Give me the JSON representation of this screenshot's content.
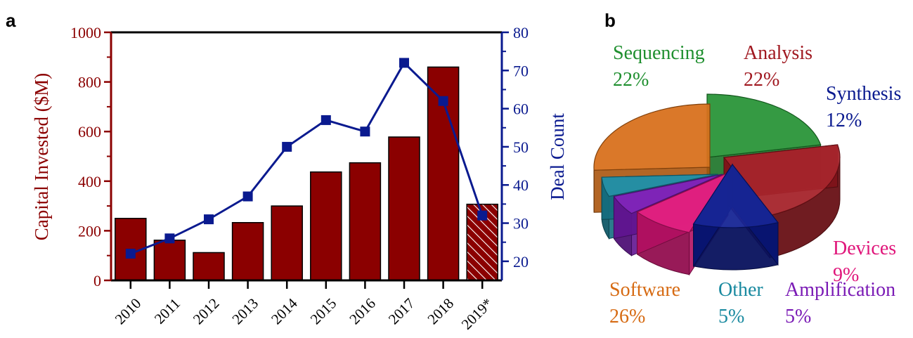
{
  "figure": {
    "panel_a": "a",
    "panel_b": "b"
  },
  "chart_data": [
    {
      "type": "bar",
      "categories": [
        "2010",
        "2011",
        "2012",
        "2013",
        "2014",
        "2015",
        "2016",
        "2017",
        "2018",
        "2019*"
      ],
      "series": [
        {
          "values": [
            250,
            162,
            112,
            233,
            300,
            437,
            474,
            578,
            860,
            307
          ],
          "axis": "left",
          "color": "#8b0000",
          "hatched_last": true
        },
        {
          "type": "line",
          "values": [
            22,
            26,
            31,
            37,
            50,
            57,
            54,
            72,
            62,
            32
          ],
          "axis": "right",
          "color": "#0a1a8f",
          "marker": "square"
        }
      ],
      "ylabel": "Capital Invested ($M)",
      "y2label": "Deal Count",
      "ylim": [
        0,
        1000
      ],
      "y2lim": [
        15,
        80
      ],
      "yticks": [
        0,
        200,
        400,
        600,
        800,
        1000
      ],
      "y2ticks": [
        20,
        30,
        40,
        50,
        60,
        70,
        80
      ],
      "grid": false,
      "left_axis_color": "#8b0000",
      "right_axis_color": "#0a1a8f"
    },
    {
      "type": "pie",
      "style": "3d-exploded",
      "slices": [
        {
          "name": "Sequencing",
          "value": 22,
          "label": "22%",
          "color": "#1f8f2f"
        },
        {
          "name": "Analysis",
          "value": 22,
          "label": "22%",
          "color": "#a01820"
        },
        {
          "name": "Synthesis",
          "value": 12,
          "label": "12%",
          "color": "#0a1a8f"
        },
        {
          "name": "Devices",
          "value": 9,
          "label": "9%",
          "color": "#e0157a"
        },
        {
          "name": "Amplification",
          "value": 5,
          "label": "5%",
          "color": "#7a1ab5"
        },
        {
          "name": "Other",
          "value": 5,
          "label": "5%",
          "color": "#1a8aa0"
        },
        {
          "name": "Software",
          "value": 26,
          "label": "26%",
          "color": "#d66a12"
        }
      ]
    }
  ]
}
